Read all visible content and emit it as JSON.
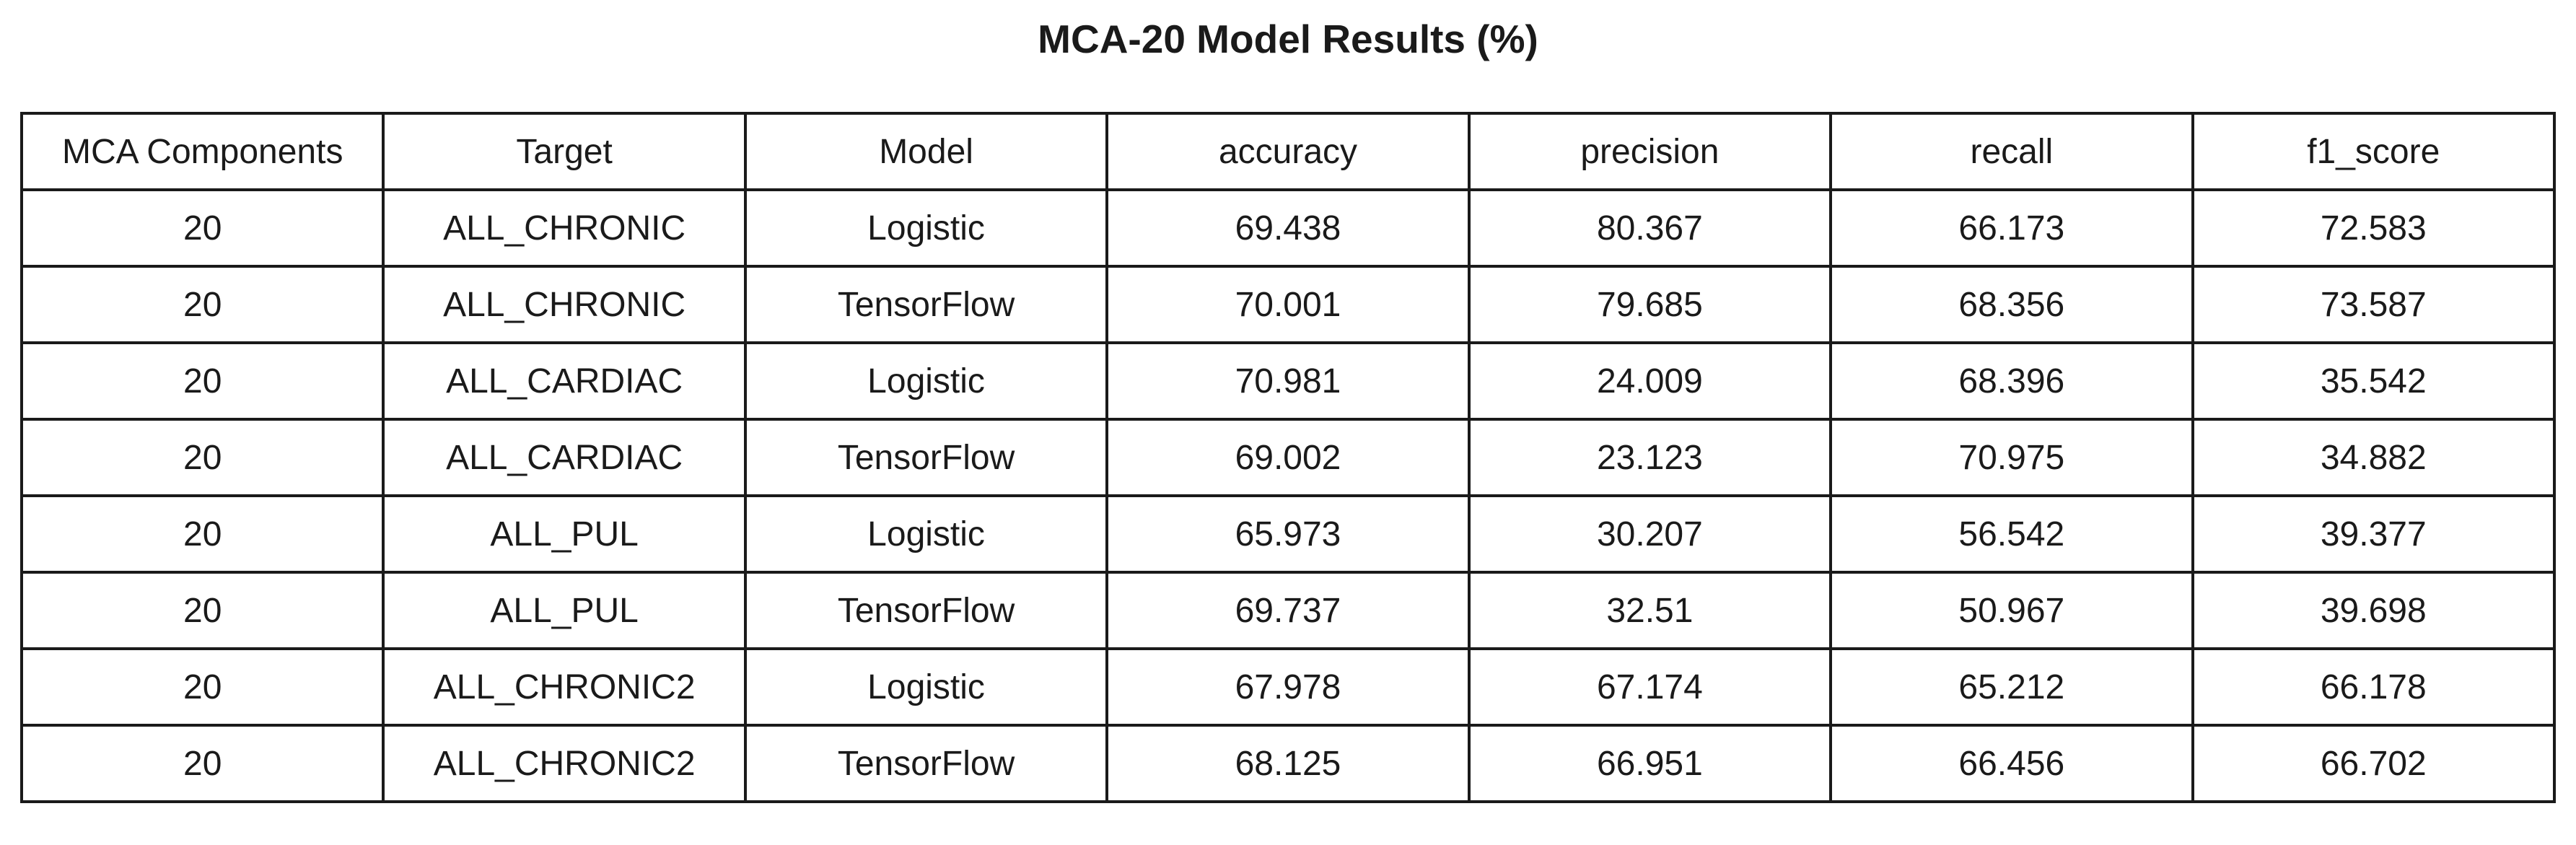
{
  "chart_data": {
    "type": "table",
    "title": "MCA-20 Model Results (%)",
    "columns": [
      "MCA Components",
      "Target",
      "Model",
      "accuracy",
      "precision",
      "recall",
      "f1_score"
    ],
    "rows": [
      [
        "20",
        "ALL_CHRONIC",
        "Logistic",
        "69.438",
        "80.367",
        "66.173",
        "72.583"
      ],
      [
        "20",
        "ALL_CHRONIC",
        "TensorFlow",
        "70.001",
        "79.685",
        "68.356",
        "73.587"
      ],
      [
        "20",
        "ALL_CARDIAC",
        "Logistic",
        "70.981",
        "24.009",
        "68.396",
        "35.542"
      ],
      [
        "20",
        "ALL_CARDIAC",
        "TensorFlow",
        "69.002",
        "23.123",
        "70.975",
        "34.882"
      ],
      [
        "20",
        "ALL_PUL",
        "Logistic",
        "65.973",
        "30.207",
        "56.542",
        "39.377"
      ],
      [
        "20",
        "ALL_PUL",
        "TensorFlow",
        "69.737",
        "32.51",
        "50.967",
        "39.698"
      ],
      [
        "20",
        "ALL_CHRONIC2",
        "Logistic",
        "67.978",
        "67.174",
        "65.212",
        "66.178"
      ],
      [
        "20",
        "ALL_CHRONIC2",
        "TensorFlow",
        "68.125",
        "66.951",
        "66.456",
        "66.702"
      ]
    ]
  }
}
